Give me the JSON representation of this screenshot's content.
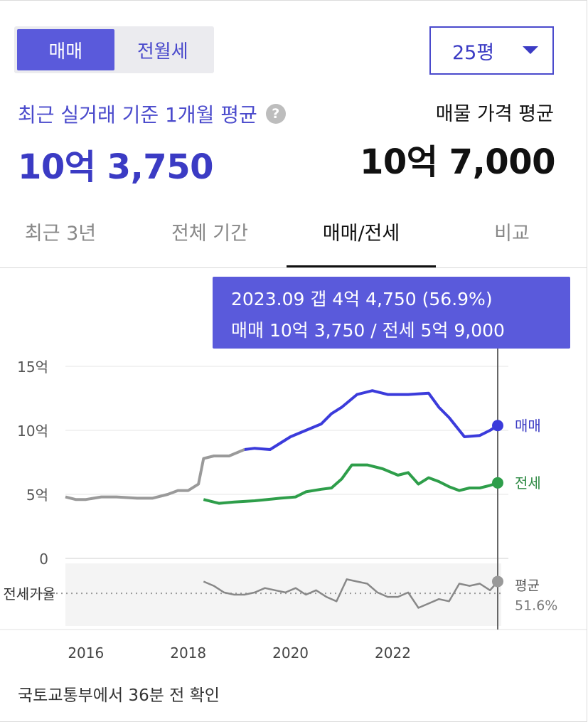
{
  "toggle": {
    "options": [
      "매매",
      "전월세"
    ],
    "active": 0
  },
  "area_select": {
    "value": "25평",
    "icon": "caret-down-icon"
  },
  "summary": {
    "recent_label": "최근 실거래 기준 1개월 평균",
    "recent_help_icon": "question-icon",
    "recent_price": "10억 3,750",
    "listing_label": "매물 가격 평균",
    "listing_price": "10억 7,000"
  },
  "tabs": [
    {
      "label": "최근 3년"
    },
    {
      "label": "전체 기간"
    },
    {
      "label": "매매/전세"
    },
    {
      "label": "비교"
    }
  ],
  "active_tab": 2,
  "tooltip": {
    "line1": "2023.09  갭 4억 4,750 (56.9%)",
    "line2": "매매 10억 3,750 / 전세 5억 9,000"
  },
  "chart_data": {
    "type": "line",
    "title": "",
    "xlabel": "",
    "ylabel": "",
    "x_ticks": [
      "2016",
      "2018",
      "2020",
      "2022"
    ],
    "y_ticks": [
      "15억",
      "10억",
      "5억",
      "0"
    ],
    "ylim": [
      0,
      15
    ],
    "grid": true,
    "ratio_label": "전세가율",
    "series": [
      {
        "name": "매매",
        "color": "#3b3bdb",
        "x": [
          2015.3,
          2015.5,
          2015.7,
          2016.0,
          2016.3,
          2016.7,
          2017.0,
          2017.3,
          2017.5,
          2017.7,
          2017.9,
          2018.0,
          2018.2,
          2018.5,
          2018.8,
          2019.0,
          2019.3,
          2019.5,
          2019.7,
          2020.0,
          2020.3,
          2020.5,
          2020.7,
          2021.0,
          2021.3,
          2021.6,
          2022.0,
          2022.4,
          2022.6,
          2022.8,
          2023.1,
          2023.4,
          2023.6,
          2023.75
        ],
        "values": [
          4.8,
          4.6,
          4.6,
          4.8,
          4.8,
          4.7,
          4.7,
          5.0,
          5.3,
          5.3,
          5.8,
          7.8,
          8.0,
          8.0,
          8.5,
          8.6,
          8.5,
          9.0,
          9.5,
          10.0,
          10.5,
          11.3,
          11.8,
          12.8,
          13.1,
          12.8,
          12.8,
          12.9,
          11.8,
          11.0,
          9.5,
          9.6,
          10.0,
          10.375
        ]
      },
      {
        "name": "전세",
        "color": "#2e9e4a",
        "x": [
          2018.0,
          2018.3,
          2018.6,
          2019.0,
          2019.5,
          2019.8,
          2020.0,
          2020.3,
          2020.5,
          2020.7,
          2020.9,
          2021.2,
          2021.5,
          2021.8,
          2022.0,
          2022.2,
          2022.4,
          2022.6,
          2022.8,
          2023.0,
          2023.2,
          2023.4,
          2023.6,
          2023.75
        ],
        "values": [
          4.6,
          4.3,
          4.4,
          4.5,
          4.7,
          4.8,
          5.2,
          5.4,
          5.5,
          6.2,
          7.3,
          7.3,
          7.0,
          6.5,
          6.7,
          5.8,
          6.3,
          6.0,
          5.6,
          5.3,
          5.5,
          5.5,
          5.7,
          5.9
        ]
      }
    ],
    "ratio_series": {
      "name": "평균",
      "avg_label": "51.6%",
      "x": [
        2018.0,
        2018.2,
        2018.4,
        2018.6,
        2018.8,
        2019.0,
        2019.2,
        2019.4,
        2019.6,
        2019.8,
        2020.0,
        2020.2,
        2020.4,
        2020.6,
        2020.8,
        2021.0,
        2021.2,
        2021.4,
        2021.6,
        2021.8,
        2022.0,
        2022.2,
        2022.4,
        2022.6,
        2022.8,
        2023.0,
        2023.2,
        2023.4,
        2023.6,
        2023.75
      ],
      "values": [
        57,
        55,
        52,
        51,
        51,
        52,
        54,
        53,
        52,
        54,
        51,
        53,
        50,
        48,
        58,
        57,
        56,
        52,
        50,
        50,
        52,
        45,
        47,
        49,
        48,
        56,
        55,
        56,
        53,
        57
      ]
    }
  }
}
